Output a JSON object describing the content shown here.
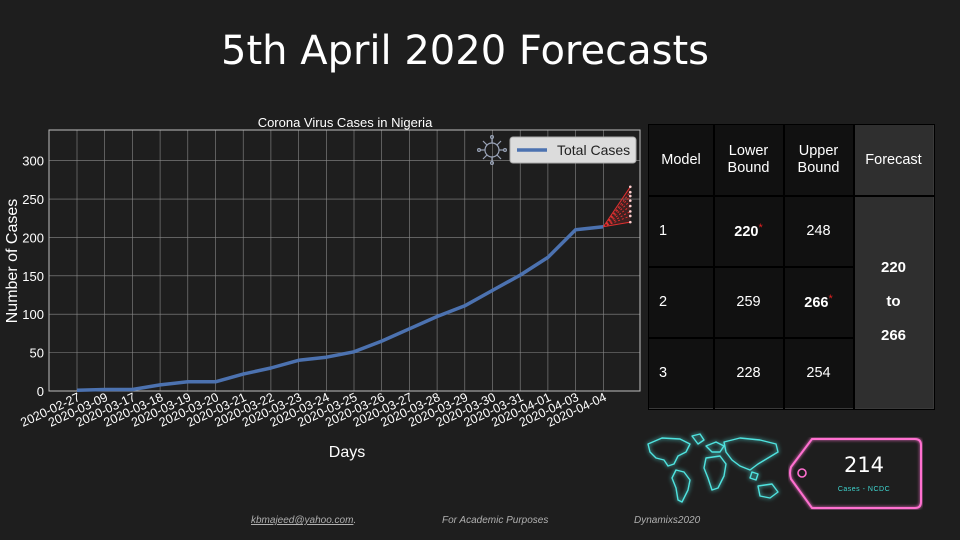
{
  "slide": {
    "title": "5th April 2020 Forecasts"
  },
  "chart_data": {
    "type": "line",
    "title": "Corona Virus Cases in Nigeria",
    "xlabel": "Days",
    "ylabel": "Number of Cases",
    "ylim": [
      0,
      340
    ],
    "yticks": [
      0,
      50,
      100,
      150,
      200,
      250,
      300
    ],
    "grid": true,
    "legend_position": "top-right",
    "categories": [
      "2020-02-27",
      "2020-03-09",
      "2020-03-17",
      "2020-03-18",
      "2020-03-19",
      "2020-03-20",
      "2020-03-21",
      "2020-03-22",
      "2020-03-23",
      "2020-03-24",
      "2020-03-25",
      "2020-03-26",
      "2020-03-27",
      "2020-03-28",
      "2020-03-29",
      "2020-03-30",
      "2020-03-31",
      "2020-04-01",
      "2020-04-03",
      "2020-04-04"
    ],
    "series": [
      {
        "name": "Total Cases",
        "color": "#4c72b0",
        "values": [
          1,
          2,
          2,
          8,
          12,
          12,
          22,
          30,
          40,
          44,
          51,
          65,
          81,
          97,
          111,
          131,
          151,
          174,
          210,
          214
        ]
      }
    ],
    "forecast_fan": {
      "color": "#e03030",
      "start_value": 214,
      "points": [
        220,
        228,
        234,
        241,
        248,
        254,
        259,
        266
      ]
    }
  },
  "table": {
    "headers": [
      "Model",
      "Lower Bound",
      "Upper Bound",
      "Forecast"
    ],
    "rows": [
      {
        "model": "1",
        "lower": "220",
        "upper": "248"
      },
      {
        "model": "2",
        "lower": "259",
        "upper": "266"
      },
      {
        "model": "3",
        "lower": "228",
        "upper": "254"
      }
    ],
    "star": "*",
    "forecast": {
      "from": "220",
      "to_word": "to",
      "to": "266"
    }
  },
  "counter": {
    "value": "214",
    "caption": "Cases - NCDC",
    "glow_color": "#ff6fd0",
    "map_color": "#4fe3df"
  },
  "footer": {
    "email": "kbmajeed@yahoo.com",
    "email_suffix": ".",
    "purpose": "For Academic Purposes",
    "brand": "Dynamixs2020"
  }
}
